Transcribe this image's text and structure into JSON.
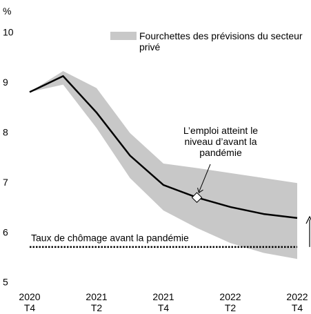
{
  "chart_data": {
    "type": "line",
    "y_label": "%",
    "categories": [
      "2020\nT4",
      null,
      "2021\nT2",
      null,
      "2021\nT4",
      null,
      "2022\nT2",
      null,
      "2022\nT4"
    ],
    "ylim": [
      5,
      10
    ],
    "yticks": [
      5,
      6,
      7,
      8,
      9,
      10
    ],
    "band": {
      "name": "Fourchettes des prévisions du secteur privé",
      "color": "#c8c8c8",
      "upper": [
        8.82,
        9.24,
        8.9,
        8.0,
        7.39,
        7.3,
        7.2,
        7.1,
        7.0
      ],
      "lower": [
        8.82,
        8.97,
        8.1,
        7.1,
        6.45,
        6.1,
        5.8,
        5.6,
        5.48
      ]
    },
    "series": [
      {
        "color": "#000000",
        "values": [
          8.82,
          9.14,
          8.41,
          7.55,
          6.96,
          6.71,
          6.52,
          6.38,
          6.3
        ]
      }
    ],
    "reference_line": {
      "label": "Taux de chômage avant la pandémie",
      "value": 5.72
    },
    "annotation": [
      "L’emploi atteint le",
      "niveau d’avant la",
      "pandémie"
    ]
  }
}
